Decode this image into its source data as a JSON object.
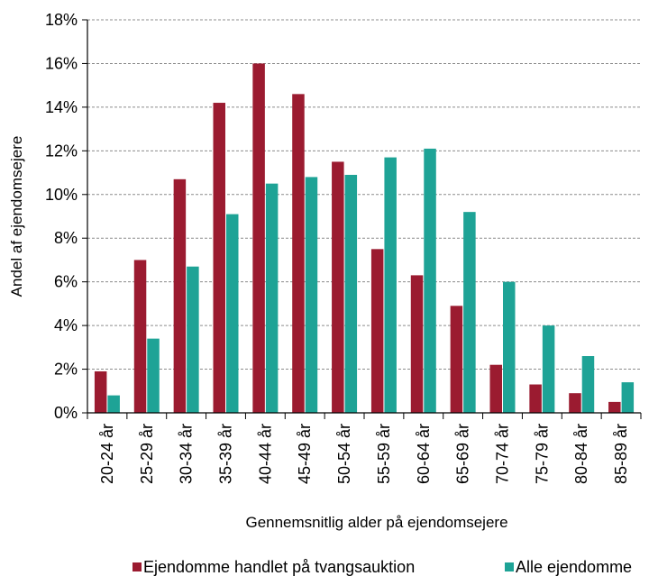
{
  "chart_data": {
    "type": "bar",
    "title": "",
    "xlabel": "Gennemsnitlig alder på ejendomsejere",
    "ylabel": "Andel af ejendomsejere",
    "ylim": [
      0,
      18
    ],
    "y_ticks": [
      "0%",
      "2%",
      "4%",
      "6%",
      "8%",
      "10%",
      "12%",
      "14%",
      "16%",
      "18%"
    ],
    "grid": "horizontal dashed",
    "legend_position": "bottom",
    "categories": [
      "20-24 år",
      "25-29 år",
      "30-34 år",
      "35-39 år",
      "40-44 år",
      "45-49 år",
      "50-54 år",
      "55-59 år",
      "60-64 år",
      "65-69 år",
      "70-74 år",
      "75-79 år",
      "80-84 år",
      "85-89 år"
    ],
    "series": [
      {
        "name": "Ejendomme handlet på tvangsauktion",
        "color": "#9b1b30",
        "values": [
          1.9,
          7.0,
          10.7,
          14.2,
          16.0,
          14.6,
          11.5,
          7.5,
          6.3,
          4.9,
          2.2,
          1.3,
          0.9,
          0.5
        ]
      },
      {
        "name": "Alle ejendomme",
        "color": "#1ea396",
        "values": [
          0.8,
          3.4,
          6.7,
          9.1,
          10.5,
          10.8,
          10.9,
          11.7,
          12.1,
          9.2,
          6.0,
          4.0,
          2.6,
          1.4
        ]
      }
    ]
  }
}
